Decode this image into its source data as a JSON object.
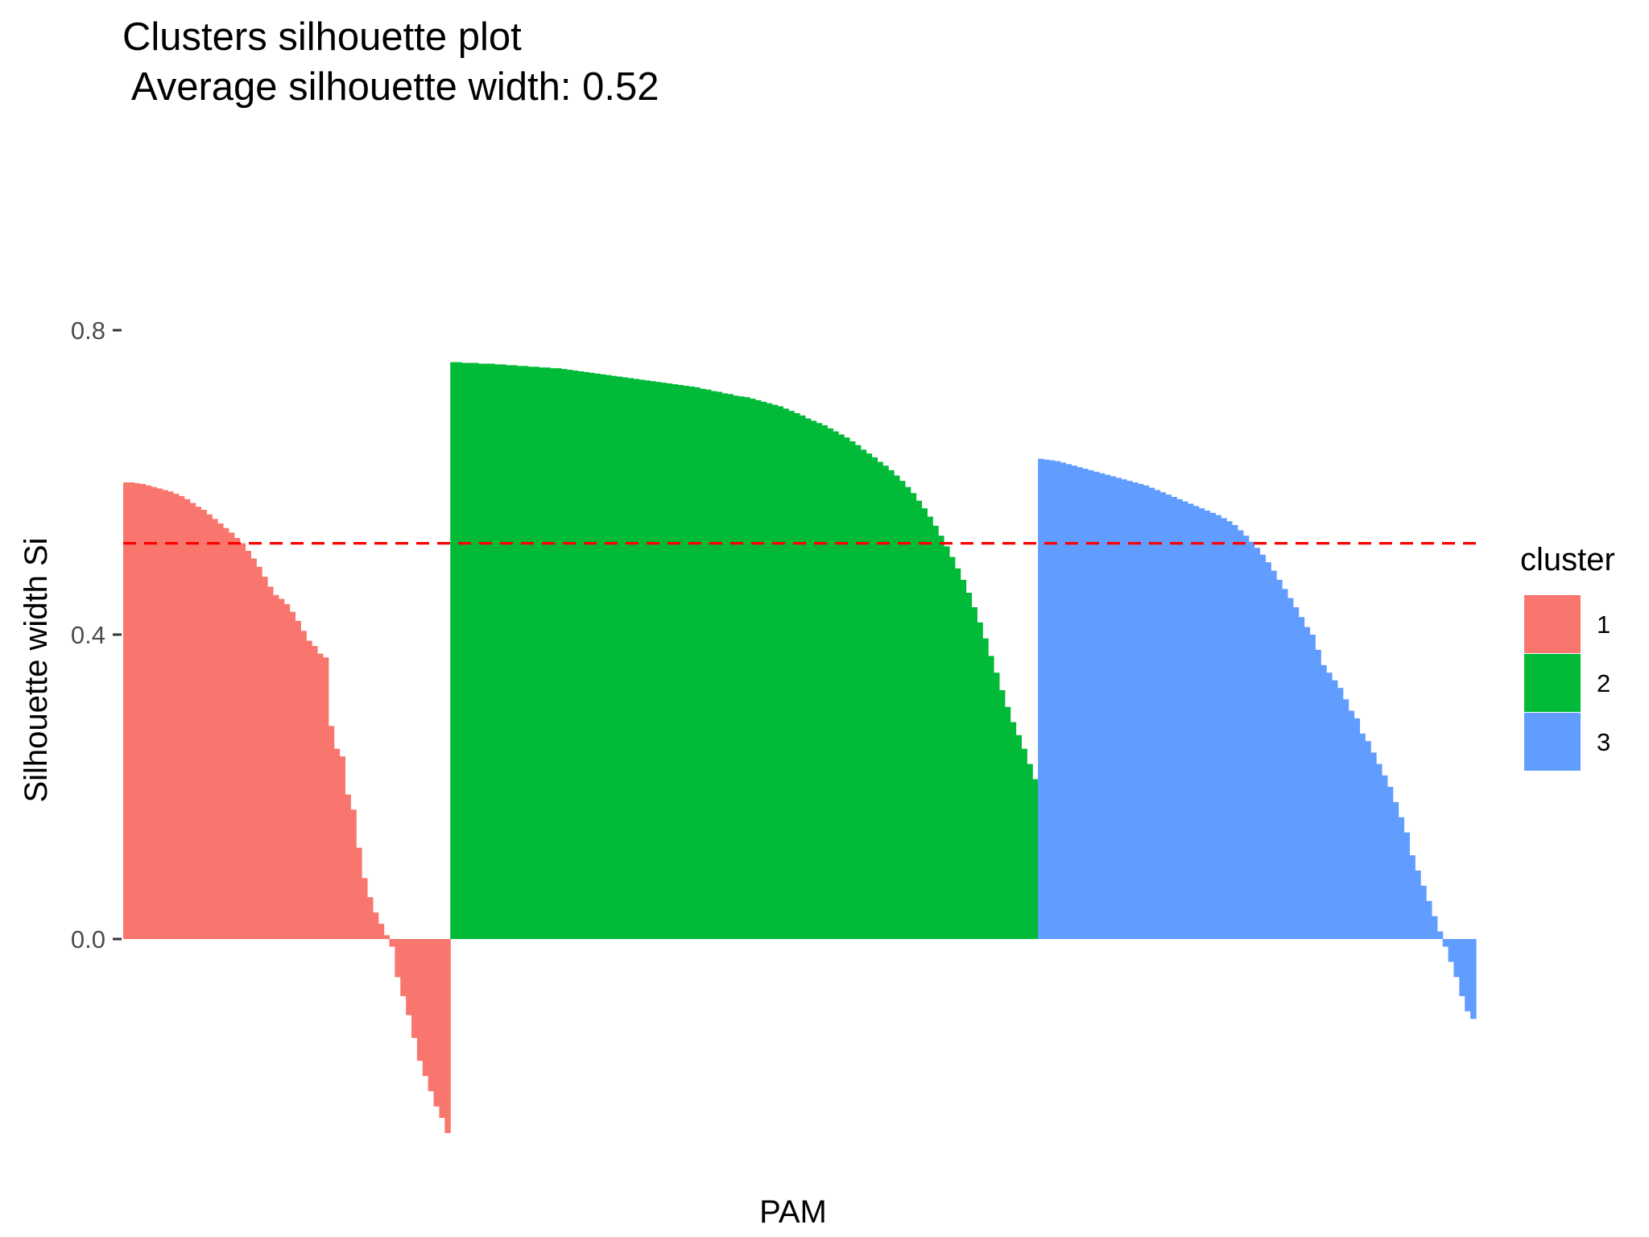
{
  "chart_data": {
    "type": "bar",
    "title": "Clusters silhouette plot",
    "subtitle": " Average silhouette width: 0.52",
    "xlabel": "PAM",
    "ylabel": "Silhouette width Si",
    "ylim": [
      -0.26,
      0.8
    ],
    "yticks": [
      0.0,
      0.4,
      0.8
    ],
    "ytick_labels": [
      "0.0",
      "0.4",
      "0.8"
    ],
    "grid": false,
    "legend": {
      "title": "cluster",
      "position": "right"
    },
    "reference_line": {
      "value": 0.52,
      "style": "dashed",
      "color": "#ff0000"
    },
    "series": [
      {
        "name": "1",
        "color": "#F8766D",
        "values": [
          0.6,
          0.6,
          0.599,
          0.598,
          0.596,
          0.594,
          0.592,
          0.59,
          0.588,
          0.585,
          0.582,
          0.578,
          0.573,
          0.568,
          0.564,
          0.558,
          0.552,
          0.546,
          0.54,
          0.534,
          0.527,
          0.52,
          0.51,
          0.5,
          0.489,
          0.476,
          0.463,
          0.452,
          0.447,
          0.44,
          0.43,
          0.418,
          0.405,
          0.392,
          0.385,
          0.375,
          0.37,
          0.28,
          0.25,
          0.24,
          0.19,
          0.17,
          0.12,
          0.08,
          0.055,
          0.035,
          0.02,
          0.005,
          -0.01,
          -0.05,
          -0.075,
          -0.1,
          -0.13,
          -0.16,
          -0.18,
          -0.2,
          -0.22,
          -0.235,
          -0.255
        ]
      },
      {
        "name": "2",
        "color": "#00BA38",
        "values": [
          0.758,
          0.758,
          0.757,
          0.757,
          0.757,
          0.756,
          0.756,
          0.756,
          0.755,
          0.755,
          0.754,
          0.754,
          0.753,
          0.753,
          0.752,
          0.752,
          0.751,
          0.751,
          0.75,
          0.75,
          0.749,
          0.748,
          0.747,
          0.746,
          0.745,
          0.744,
          0.743,
          0.742,
          0.741,
          0.74,
          0.739,
          0.738,
          0.737,
          0.736,
          0.735,
          0.734,
          0.733,
          0.732,
          0.731,
          0.73,
          0.729,
          0.728,
          0.727,
          0.726,
          0.725,
          0.723,
          0.722,
          0.72,
          0.719,
          0.717,
          0.716,
          0.714,
          0.713,
          0.712,
          0.71,
          0.708,
          0.706,
          0.704,
          0.702,
          0.7,
          0.697,
          0.694,
          0.691,
          0.688,
          0.684,
          0.681,
          0.678,
          0.675,
          0.671,
          0.667,
          0.663,
          0.659,
          0.654,
          0.649,
          0.643,
          0.638,
          0.633,
          0.627,
          0.622,
          0.616,
          0.609,
          0.602,
          0.594,
          0.586,
          0.576,
          0.566,
          0.555,
          0.543,
          0.53,
          0.516,
          0.502,
          0.487,
          0.472,
          0.455,
          0.436,
          0.416,
          0.395,
          0.372,
          0.35,
          0.327,
          0.305,
          0.285,
          0.268,
          0.25,
          0.23,
          0.21
        ]
      },
      {
        "name": "3",
        "color": "#619CFF",
        "values": [
          0.631,
          0.63,
          0.629,
          0.628,
          0.626,
          0.624,
          0.622,
          0.62,
          0.618,
          0.616,
          0.614,
          0.612,
          0.61,
          0.608,
          0.606,
          0.604,
          0.602,
          0.6,
          0.598,
          0.596,
          0.593,
          0.59,
          0.587,
          0.584,
          0.581,
          0.578,
          0.575,
          0.572,
          0.569,
          0.566,
          0.563,
          0.56,
          0.557,
          0.553,
          0.549,
          0.544,
          0.537,
          0.53,
          0.522,
          0.514,
          0.505,
          0.495,
          0.484,
          0.472,
          0.46,
          0.448,
          0.436,
          0.423,
          0.41,
          0.4,
          0.38,
          0.36,
          0.35,
          0.34,
          0.33,
          0.315,
          0.3,
          0.29,
          0.27,
          0.26,
          0.245,
          0.23,
          0.215,
          0.2,
          0.18,
          0.16,
          0.14,
          0.11,
          0.09,
          0.07,
          0.05,
          0.03,
          0.01,
          -0.01,
          -0.03,
          -0.05,
          -0.075,
          -0.095,
          -0.105
        ]
      }
    ]
  }
}
